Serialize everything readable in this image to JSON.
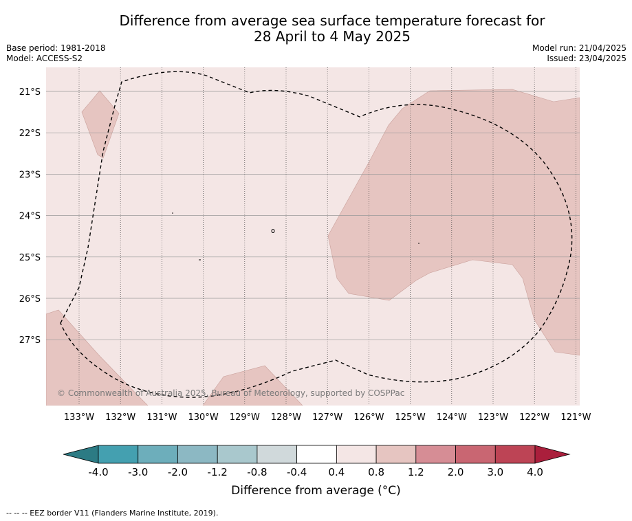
{
  "title_line1": "Difference from average sea surface temperature forecast for",
  "title_line2": "28 April to 4 May 2025",
  "base_period": "Base period: 1981-2018",
  "model": "Model: ACCESS-S2",
  "model_run": "Model run: 21/04/2025",
  "issued": "Issued: 23/04/2025",
  "lat_labels": [
    "21°S",
    "22°S",
    "23°S",
    "24°S",
    "25°S",
    "26°S",
    "27°S"
  ],
  "lon_labels": [
    "133°W",
    "132°W",
    "131°W",
    "130°W",
    "129°W",
    "128°W",
    "127°W",
    "126°W",
    "125°W",
    "124°W",
    "123°W",
    "122°W",
    "121°W"
  ],
  "colorbar": {
    "ticks": [
      "-4.0",
      "-3.0",
      "-2.0",
      "-1.2",
      "-0.8",
      "-0.4",
      "0.4",
      "0.8",
      "1.2",
      "2.0",
      "3.0",
      "4.0"
    ],
    "colors": [
      "#2c7b84",
      "#44a0b0",
      "#6daebb",
      "#8cb8c3",
      "#a9c8cd",
      "#d0d9db",
      "#ffffff",
      "#f4e6e5",
      "#e6c5c1",
      "#d68d95",
      "#c96672",
      "#bd4455",
      "#aa1f3c"
    ],
    "label": "Difference from average (°C)"
  },
  "legend_fill_colors": {
    "background": "#f4e6e5",
    "anomaly": "#e6c5c1"
  },
  "copyright": "© Commonwealth of Australia 2025, Bureau of Meteorology, supported by COSPPac",
  "footnote": "-- -- -- EEZ border V11 (Flanders Marine Institute, 2019)."
}
